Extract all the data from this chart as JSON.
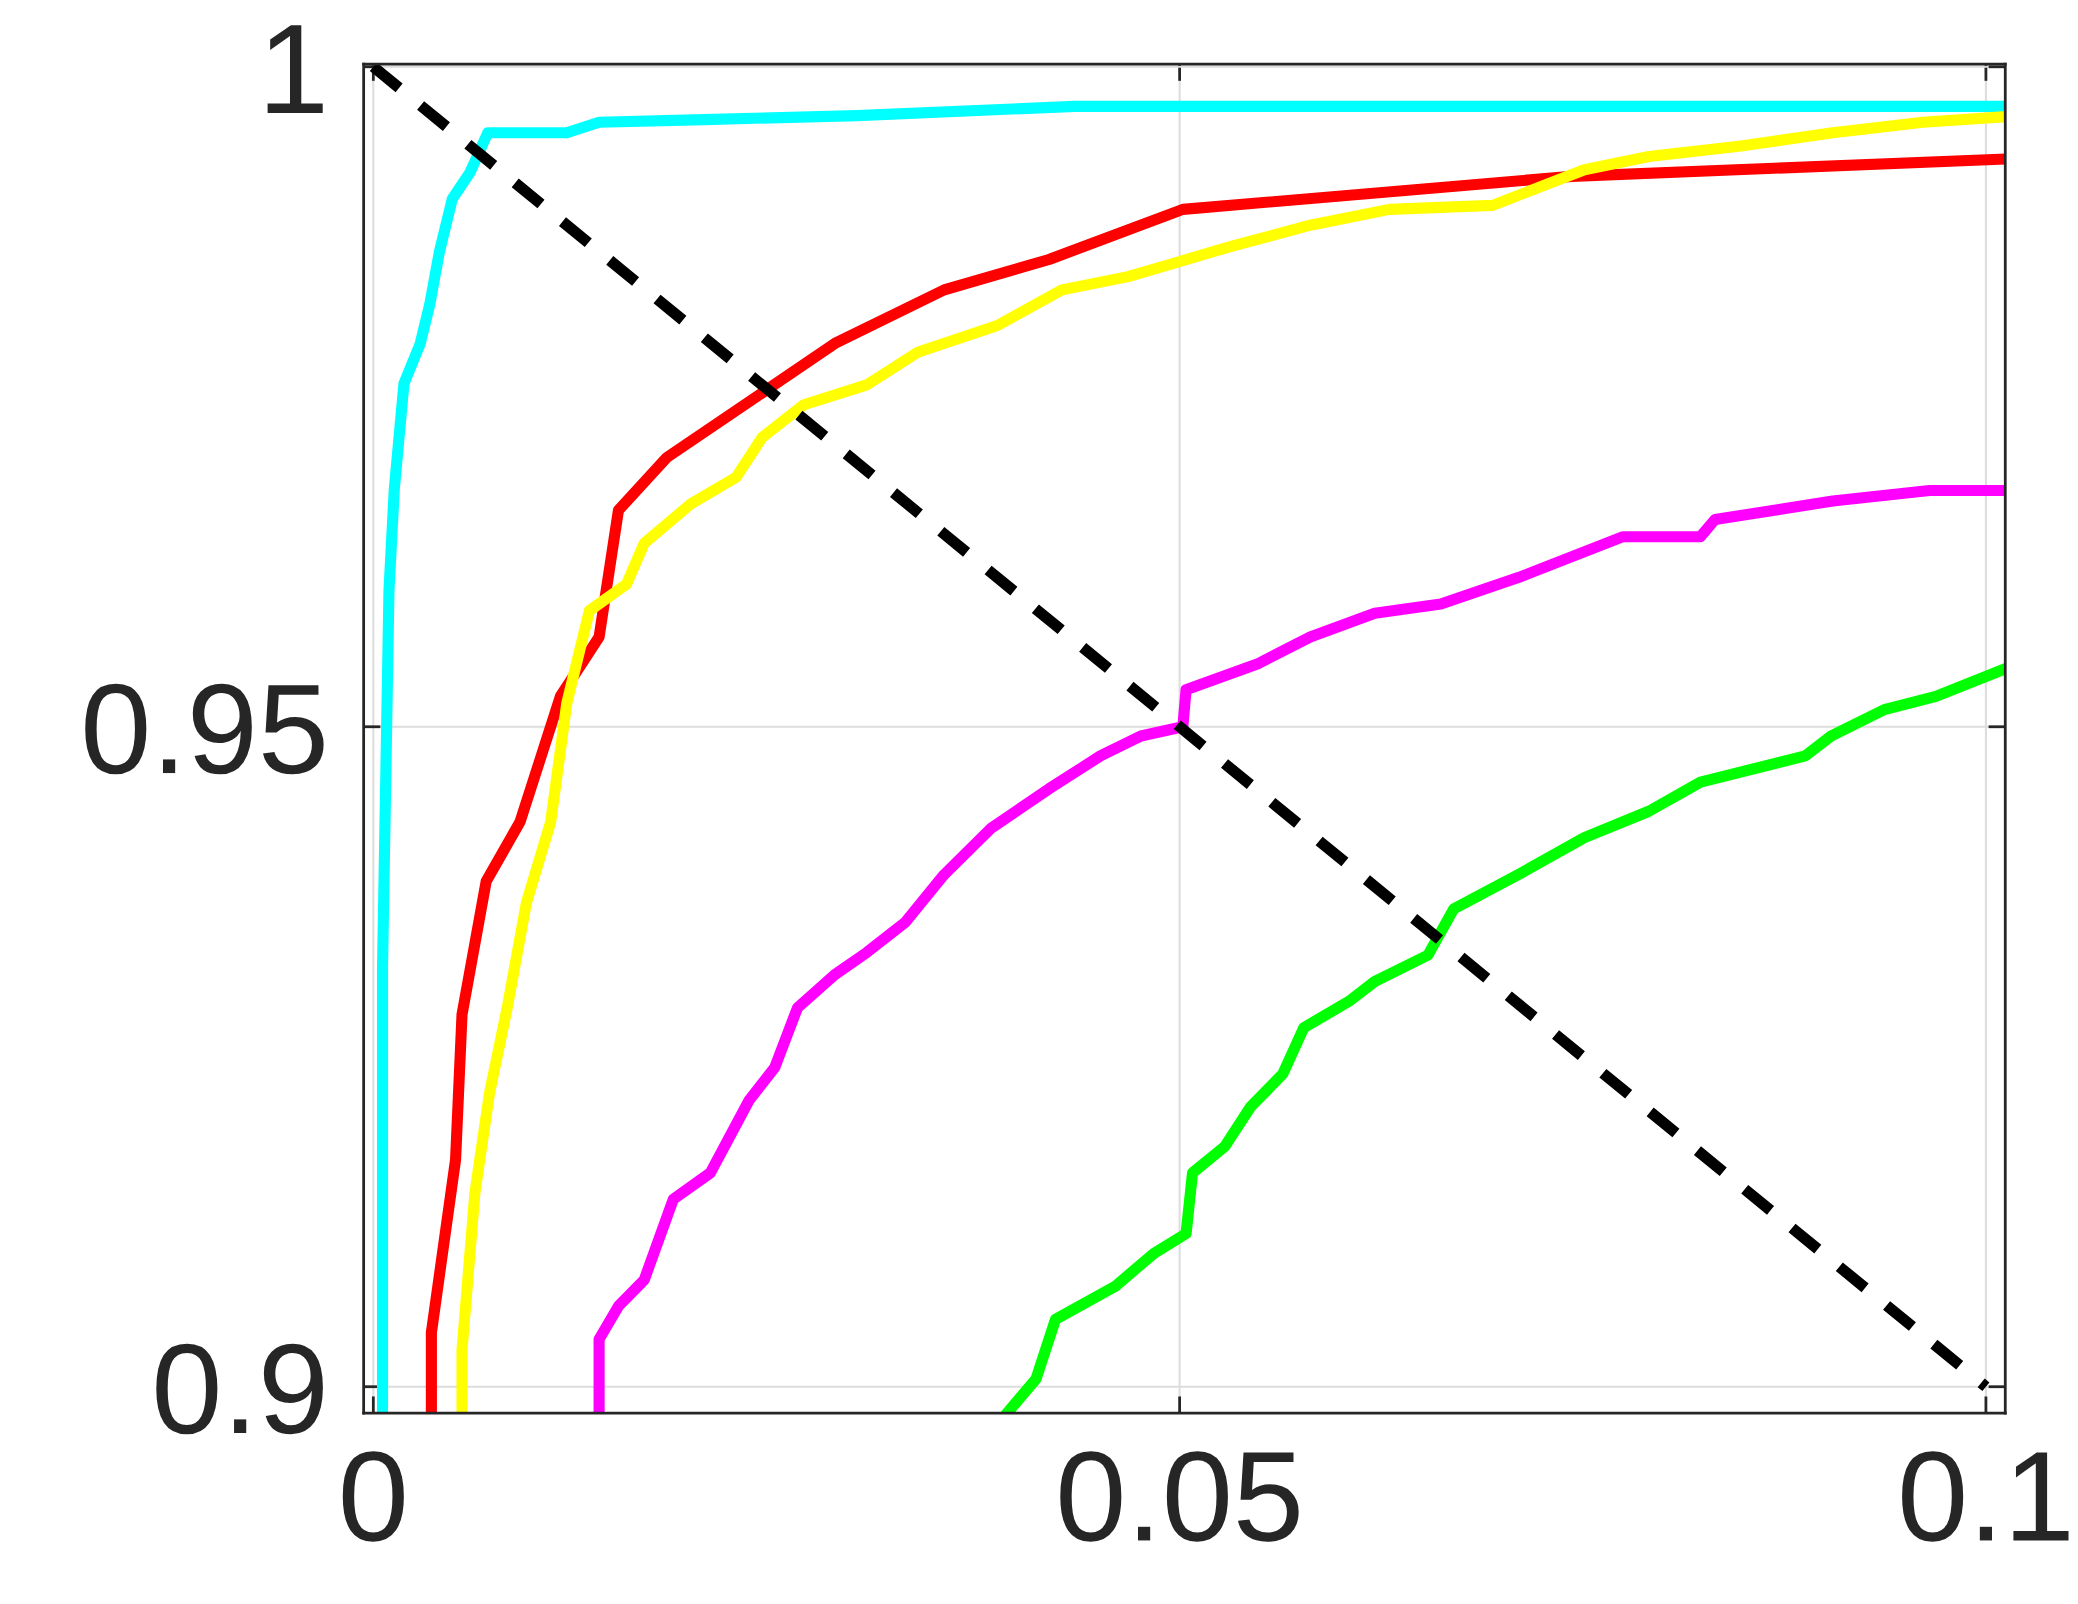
{
  "chart_data": {
    "type": "line",
    "xlim": [
      -0.0006,
      0.1012
    ],
    "ylim": [
      0.898,
      1.0002
    ],
    "xticks": [
      0,
      0.05,
      0.1
    ],
    "yticks": [
      0.9,
      0.95,
      1
    ],
    "grid": true,
    "legend": false,
    "marker": "none",
    "series": [
      {
        "color": "#00ffff",
        "x": [
          0.00057,
          0.00057,
          0.00097,
          0.0013,
          0.0019,
          0.0029,
          0.0035,
          0.0041,
          0.0049,
          0.006,
          0.0071,
          0.012,
          0.014,
          0.0205,
          0.03,
          0.0435,
          0.101
        ],
        "values": [
          0.898,
          0.9317,
          0.9603,
          0.968,
          0.976,
          0.979,
          0.982,
          0.986,
          0.99,
          0.992,
          0.995,
          0.995,
          0.9958,
          0.996,
          0.9963,
          0.997,
          0.997
        ]
      },
      {
        "color": "#ff0000",
        "x": [
          0.0036,
          0.0036,
          0.0051,
          0.0055,
          0.007,
          0.0091,
          0.0116,
          0.014,
          0.0152,
          0.0182,
          0.0287,
          0.0354,
          0.0419,
          0.0502,
          0.0743,
          0.101
        ],
        "values": [
          0.898,
          0.9041,
          0.9172,
          0.9282,
          0.9383,
          0.9428,
          0.9523,
          0.9568,
          0.9664,
          0.9704,
          0.9791,
          0.9831,
          0.9854,
          0.9892,
          0.9917,
          0.993
        ]
      },
      {
        "color": "#ffff00",
        "x": [
          0.0055,
          0.0055,
          0.0063,
          0.0072,
          0.0083,
          0.0095,
          0.011,
          0.012,
          0.0134,
          0.0157,
          0.0168,
          0.0197,
          0.0225,
          0.0241,
          0.0267,
          0.0306,
          0.0338,
          0.0387,
          0.0427,
          0.0468,
          0.0496,
          0.0532,
          0.0581,
          0.063,
          0.0694,
          0.0751,
          0.0791,
          0.0848,
          0.0905,
          0.0961,
          0.101
        ],
        "values": [
          0.898,
          0.9028,
          0.9147,
          0.9222,
          0.9287,
          0.9367,
          0.9428,
          0.9518,
          0.9588,
          0.9608,
          0.9639,
          0.9669,
          0.9689,
          0.9719,
          0.9744,
          0.9759,
          0.9784,
          0.9804,
          0.9831,
          0.9841,
          0.9851,
          0.9864,
          0.988,
          0.9892,
          0.9895,
          0.9922,
          0.9932,
          0.994,
          0.995,
          0.9958,
          0.9962
        ]
      },
      {
        "color": "#ff00ff",
        "x": [
          0.014,
          0.014,
          0.0152,
          0.0168,
          0.0186,
          0.0209,
          0.0233,
          0.0249,
          0.0263,
          0.0286,
          0.0306,
          0.033,
          0.0354,
          0.0383,
          0.0419,
          0.0451,
          0.0476,
          0.0502,
          0.0504,
          0.0549,
          0.0581,
          0.0621,
          0.0662,
          0.071,
          0.0775,
          0.0823,
          0.0832,
          0.0905,
          0.0965,
          0.101
        ],
        "values": [
          0.898,
          0.9036,
          0.9061,
          0.9081,
          0.9142,
          0.9162,
          0.9217,
          0.9242,
          0.9287,
          0.9312,
          0.9329,
          0.9352,
          0.9388,
          0.9423,
          0.9453,
          0.9478,
          0.9493,
          0.95,
          0.9528,
          0.9548,
          0.9568,
          0.9586,
          0.9593,
          0.9613,
          0.9644,
          0.9644,
          0.9657,
          0.9671,
          0.9679,
          0.9679
        ]
      },
      {
        "color": "#00ff00",
        "x": [
          0.0393,
          0.0411,
          0.0423,
          0.046,
          0.0484,
          0.0504,
          0.0508,
          0.0528,
          0.0544,
          0.0564,
          0.0577,
          0.0605,
          0.0621,
          0.0654,
          0.067,
          0.071,
          0.0751,
          0.0791,
          0.0823,
          0.0888,
          0.0904,
          0.0937,
          0.0969,
          0.101
        ],
        "values": [
          0.898,
          0.9006,
          0.9051,
          0.9076,
          0.9101,
          0.9116,
          0.9162,
          0.9182,
          0.9212,
          0.9237,
          0.9272,
          0.9292,
          0.9307,
          0.9327,
          0.9362,
          0.9388,
          0.9416,
          0.9436,
          0.9458,
          0.9478,
          0.9493,
          0.9513,
          0.9523,
          0.9543
        ]
      },
      {
        "color": "#000000",
        "line_style": "dashed",
        "x": [
          0,
          0.1
        ],
        "values": [
          1,
          0.9
        ]
      }
    ]
  }
}
